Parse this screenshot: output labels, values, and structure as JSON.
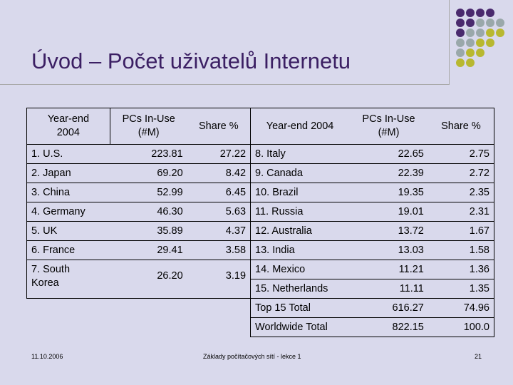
{
  "title": "Úvod – Počet uživatelů Internetu",
  "headers": {
    "left": [
      "Year-end\n2004",
      "PCs In-Use\n(#M)",
      "Share %"
    ],
    "right": [
      "Year-end 2004",
      "PCs In-Use\n(#M)",
      "Share %"
    ]
  },
  "left_rows": [
    {
      "country": "1. U.S.",
      "pcs": "223.81",
      "share": "27.22"
    },
    {
      "country": "2. Japan",
      "pcs": "69.20",
      "share": "8.42"
    },
    {
      "country": "3. China",
      "pcs": "52.99",
      "share": "6.45"
    },
    {
      "country": "4. Germany",
      "pcs": "46.30",
      "share": "5.63"
    },
    {
      "country": "5. UK",
      "pcs": "35.89",
      "share": "4.37"
    },
    {
      "country": "6. France",
      "pcs": "29.41",
      "share": "3.58"
    },
    {
      "country": "7. South\nKorea",
      "pcs": "26.20",
      "share": "3.19"
    }
  ],
  "right_rows": [
    {
      "country": "8. Italy",
      "pcs": "22.65",
      "share": "2.75"
    },
    {
      "country": "9. Canada",
      "pcs": "22.39",
      "share": "2.72"
    },
    {
      "country": "10. Brazil",
      "pcs": "19.35",
      "share": "2.35"
    },
    {
      "country": "11. Russia",
      "pcs": "19.01",
      "share": "2.31"
    },
    {
      "country": "12. Australia",
      "pcs": "13.72",
      "share": "1.67"
    },
    {
      "country": "13. India",
      "pcs": "13.03",
      "share": "1.58"
    },
    {
      "country": "14. Mexico",
      "pcs": "11.21",
      "share": "1.36"
    },
    {
      "country": "15. Netherlands",
      "pcs": "11.11",
      "share": "1.35"
    },
    {
      "country": "Top 15 Total",
      "pcs": "616.27",
      "share": "74.96"
    },
    {
      "country": "Worldwide Total",
      "pcs": "822.15",
      "share": "100.0"
    }
  ],
  "footer": {
    "date": "11.10.2006",
    "center": "Základy počítačových sítí - lekce 1",
    "page": "21"
  },
  "colors": {
    "title": "#3b1f63",
    "background": "#d9d9ec",
    "dot_purple": "#4a2a6e",
    "dot_gray": "#9aa8aa",
    "dot_olive": "#b8b830"
  }
}
